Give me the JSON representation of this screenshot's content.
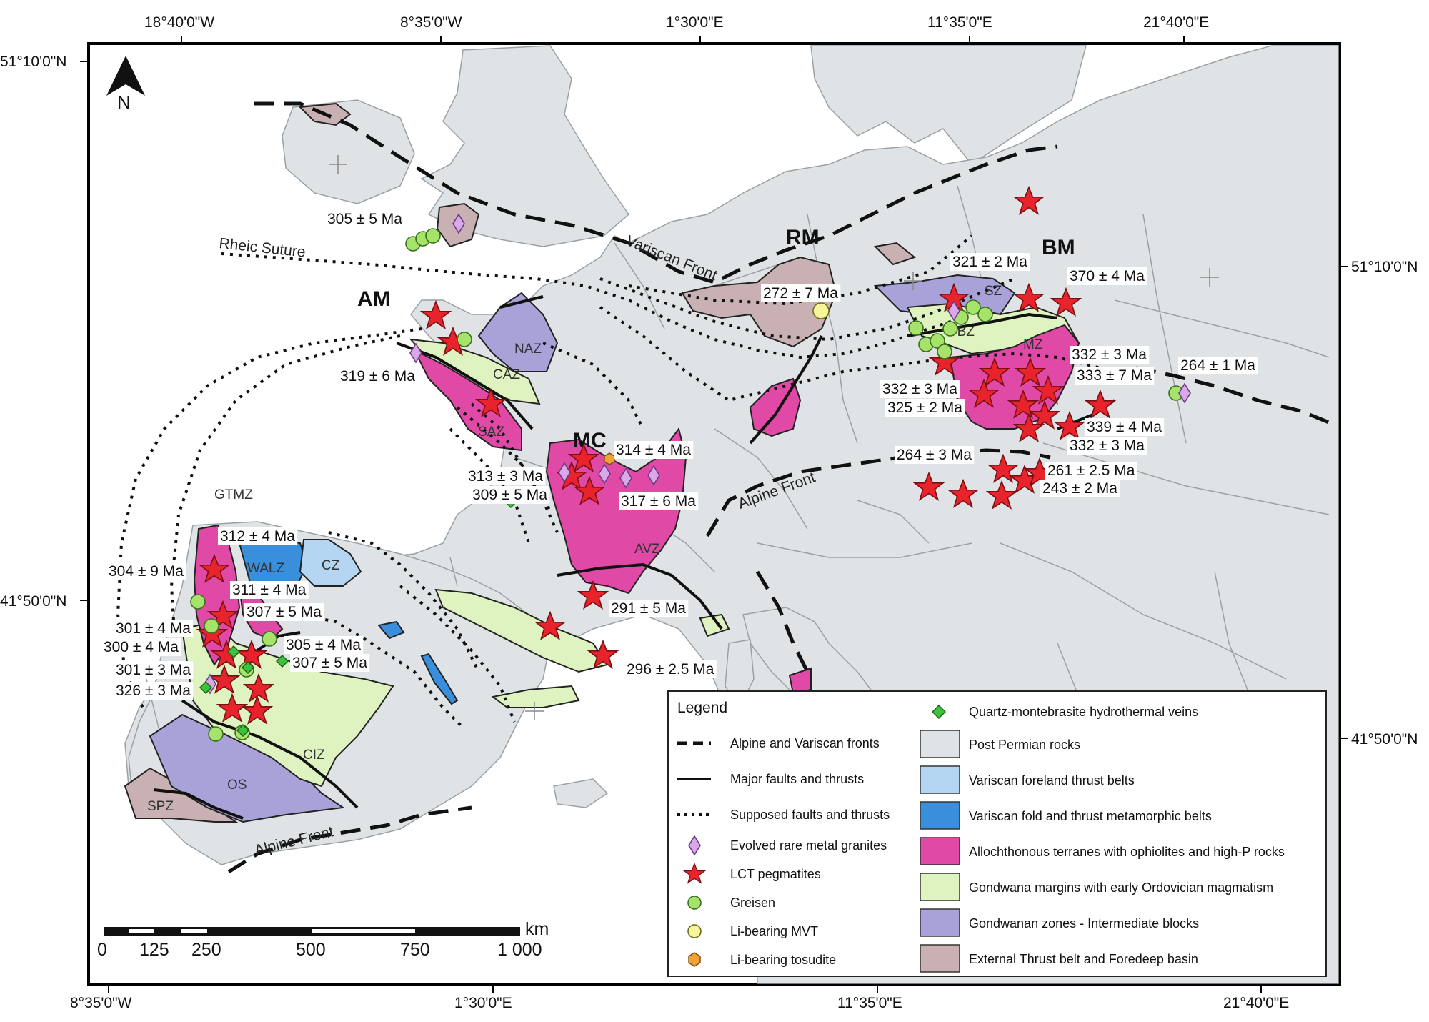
{
  "coords": {
    "top": [
      "18°40'0\"W",
      "8°35'0\"W",
      "1°30'0\"E",
      "11°35'0\"E",
      "21°40'0\"E"
    ],
    "bottom": [
      "8°35'0\"W",
      "1°30'0\"E",
      "11°35'0\"E",
      "21°40'0\"E"
    ],
    "left": [
      "51°10'0\"N",
      "41°50'0\"N"
    ],
    "right": [
      "51°10'0\"N",
      "41°50'0\"N"
    ]
  },
  "north": "N",
  "massifs": [
    "AM",
    "MC",
    "RM",
    "BM"
  ],
  "zones": [
    "NAZ",
    "CAZ",
    "SAZ",
    "AVZ",
    "SZ",
    "TBZ",
    "MZ",
    "GTMZ",
    "WALZ",
    "CZ",
    "CIZ",
    "OS",
    "SPZ"
  ],
  "fronts": [
    "Rheic Suture",
    "Variscan Front",
    "Alpine Front",
    "Alpine Front"
  ],
  "ages": [
    "305 ± 5 Ma",
    "319 ± 6 Ma",
    "272 ± 7 Ma",
    "321 ± 2 Ma",
    "370 ± 4 Ma",
    "332 ± 3 Ma",
    "333 ± 7 Ma",
    "264 ± 1 Ma",
    "332 ± 3 Ma",
    "325 ± 2 Ma",
    "339 ± 4 Ma",
    "332 ± 3 Ma",
    "264 ± 3 Ma",
    "261 ± 2.5 Ma",
    "243 ± 2 Ma",
    "314 ± 4 Ma",
    "313 ± 3 Ma",
    "309 ± 5 Ma",
    "317 ± 6 Ma",
    "291 ± 5 Ma",
    "296 ± 2.5 Ma",
    "312 ± 4 Ma",
    "304 ± 9 Ma",
    "311 ± 4 Ma",
    "307 ± 5 Ma",
    "301 ± 4 Ma",
    "300 ± 4 Ma",
    "305 ± 4 Ma",
    "307 ± 5 Ma",
    "301 ± 3 Ma",
    "326 ± 3 Ma"
  ],
  "scale": {
    "unit": "km",
    "ticks": [
      "0",
      "125",
      "250",
      "500",
      "750",
      "1 000"
    ]
  },
  "legend": {
    "title": "Legend",
    "left": [
      {
        "icon": "dashed-line",
        "label": "Alpine and Variscan fronts"
      },
      {
        "icon": "solid-line",
        "label": "Major faults and thrusts"
      },
      {
        "icon": "dotted-line",
        "label": "Supposed faults and thrusts"
      },
      {
        "icon": "diamond-violet",
        "label": "Evolved rare metal granites"
      },
      {
        "icon": "star-red",
        "label": "LCT pegmatites"
      },
      {
        "icon": "circle-green",
        "label": "Greisen"
      },
      {
        "icon": "circle-yellow",
        "label": "Li-bearing MVT"
      },
      {
        "icon": "hexagon-orange",
        "label": "Li-bearing tosudite"
      }
    ],
    "right": [
      {
        "icon": "diamond-green",
        "label": "Quartz-montebrasite hydrothermal veins"
      },
      {
        "color": "#dfe3e5",
        "label": "Post Permian rocks"
      },
      {
        "color": "#b5d6f3",
        "label": "Variscan foreland thrust belts"
      },
      {
        "color": "#3a8fdc",
        "label": "Variscan fold and thrust metamorphic belts"
      },
      {
        "color": "#e04aa6",
        "label": "Allochthonous terranes with ophiolites and high-P rocks"
      },
      {
        "color": "#dff3c0",
        "label": "Gondwana margins with early Ordovician magmatism"
      },
      {
        "color": "#a9a2d8",
        "label": "Gondwanan zones - Intermediate blocks"
      },
      {
        "color": "#c9b0b2",
        "label": "External Thrust belt and Foredeep basin"
      }
    ]
  },
  "colors": {
    "land": "#dfe3e5",
    "sea": "#ffffff",
    "star": "#e8232c",
    "greisen": "#a6e36b",
    "mvt": "#f6f59a",
    "tosudite": "#f3a23a",
    "qmv": "#3cc33c",
    "granite": "#d9a8e8"
  }
}
